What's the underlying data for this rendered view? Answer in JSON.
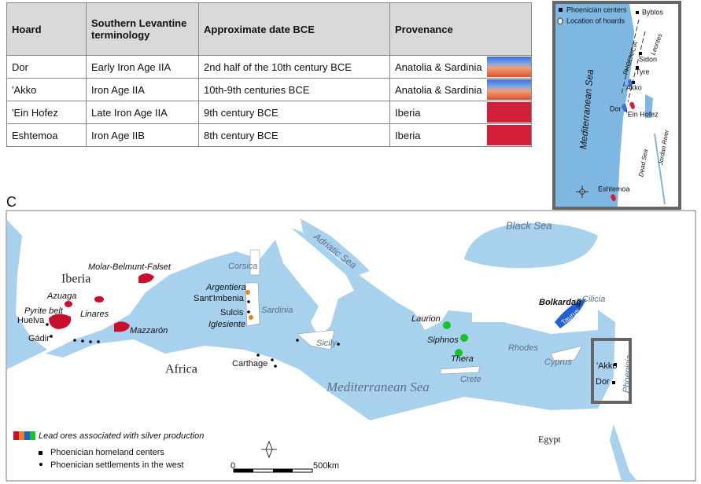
{
  "table": {
    "header": [
      "Hoard",
      "Southern Levantine terminology",
      "Approximate date BCE",
      "Provenance"
    ],
    "rows": [
      [
        "Dor",
        "Early Iron Age IIA",
        "2nd  half of the 10th century BCE",
        "Anatolia & Sardinia"
      ],
      [
        "'Akko",
        "Iron Age IIA",
        "10th-9th centuries BCE",
        "Anatolia & Sardinia"
      ],
      [
        "'Ein Hofez",
        "Late Iron Age IIA",
        "9th century BCE",
        "Iberia"
      ],
      [
        "Eshtemoa",
        "Iron Age IIB",
        "8th century BCE",
        "Iberia"
      ]
    ]
  },
  "inset_map": {
    "legend": [
      "Phoenician centers",
      "Location of hoards"
    ],
    "labels": [
      "Byblos",
      "Sidon",
      "Tyre",
      "'Akko",
      "Dor",
      "'Ein Hofez",
      "Eshtemoa",
      "Mediterranean Sea",
      "Leontes",
      "PHOENICIA",
      "Jordan River",
      "Dead Sea"
    ]
  },
  "panel_label": "C",
  "main_map": {
    "labels": [
      "Black Sea",
      "Adriatic Sea",
      "Corsica",
      "Sardinia",
      "Sicily",
      "Mediterranean Sea",
      "Iberia",
      "Africa",
      "Egypt",
      "Molar-Belmunt-Falset",
      "Azuaga",
      "Pyrite belt",
      "Huelva",
      "Gádir",
      "Linares",
      "Mazzarón",
      "Argentiera",
      "Sant'Imbenia",
      "Sulcis",
      "Iglesiente",
      "Carthage",
      "Laurion",
      "Siphnos",
      "Thera",
      "Rhodes",
      "Crete",
      "Cyprus",
      "Bolkardağ",
      "Taurus",
      "Cilicia",
      "'Akko",
      "Dor",
      "Phoenicia"
    ],
    "legend": {
      "title": "Lead ores associated with silver production",
      "items": [
        "Phoenician homeland centers",
        "Phoenician settlements in the west"
      ]
    },
    "scale": [
      "0",
      "500km"
    ]
  }
}
